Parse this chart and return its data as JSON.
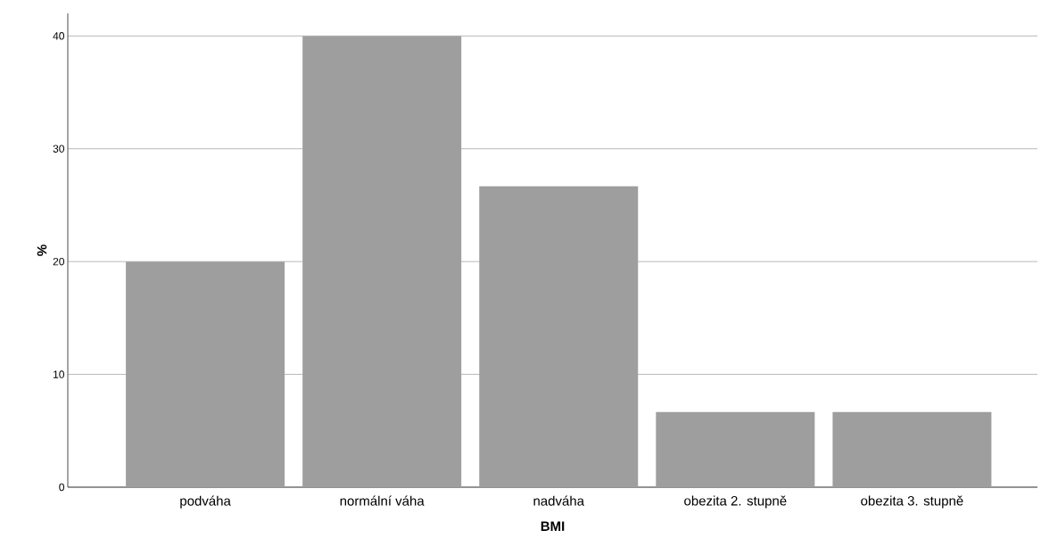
{
  "chart_data": {
    "type": "bar",
    "xlabel": "BMI",
    "ylabel": "%",
    "categories": [
      "podváha",
      "normální váha",
      "nadváha",
      "obezita 2. stupně",
      "obezita 3. stupně"
    ],
    "values": [
      20,
      40,
      26.67,
      6.67,
      6.67
    ],
    "color": "#9e9e9e",
    "ylim": [
      0,
      42
    ],
    "yticks": [
      0,
      10,
      20,
      30,
      40
    ],
    "grid": "y"
  }
}
